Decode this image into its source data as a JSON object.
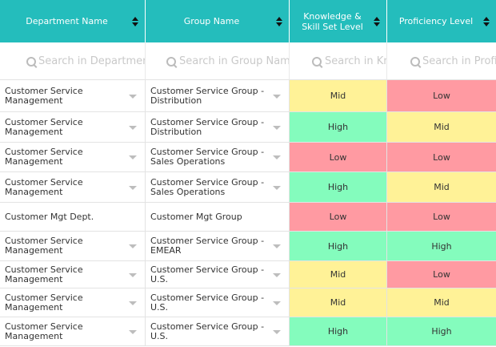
{
  "columns": [
    {
      "label": "Department Name",
      "placeholder": "Search in Department Name"
    },
    {
      "label": "Group Name",
      "placeholder": "Search in Group Name"
    },
    {
      "label": "Knowledge & Skill Set Level",
      "label_line1": "Knowledge &",
      "label_line2": "Skill Set Level",
      "placeholder": "Search in Knowledge"
    },
    {
      "label": "Proficiency Level",
      "placeholder": "Search in Proficiency Level"
    }
  ],
  "rows": [
    {
      "department": "Customer Service Management",
      "group": "Customer Service Group - Distribution",
      "knowledge": "Mid",
      "proficiency": "Low"
    },
    {
      "department": "Customer Service Management",
      "group": "Customer Service Group - Distribution",
      "knowledge": "High",
      "proficiency": "Mid"
    },
    {
      "department": "Customer Service Management",
      "group": "Customer Service Group - Sales Operations",
      "knowledge": "Low",
      "proficiency": "Low"
    },
    {
      "department": "Customer Service Management",
      "group": "Customer Service Group - Sales Operations",
      "knowledge": "High",
      "proficiency": "Mid"
    },
    {
      "department": "Customer Mgt Dept.",
      "group": "Customer Mgt Group",
      "knowledge": "Low",
      "proficiency": "Low"
    },
    {
      "department": "Customer Service Management",
      "group": "Customer Service Group - EMEAR",
      "knowledge": "High",
      "proficiency": "High"
    },
    {
      "department": "Customer Service Management",
      "group": "Customer Service Group - U.S.",
      "knowledge": "Mid",
      "proficiency": "Low"
    },
    {
      "department": "Customer Service Management",
      "group": "Customer Service Group - U.S.",
      "knowledge": "Mid",
      "proficiency": "Mid"
    },
    {
      "department": "Customer Service Management",
      "group": "Customer Service Group - U.S.",
      "knowledge": "High",
      "proficiency": "High"
    }
  ],
  "level_colors": {
    "High": "#84fcbd",
    "Mid": "#fff297",
    "Low": "#ff9aa2"
  },
  "header_color": "#24bdbc"
}
